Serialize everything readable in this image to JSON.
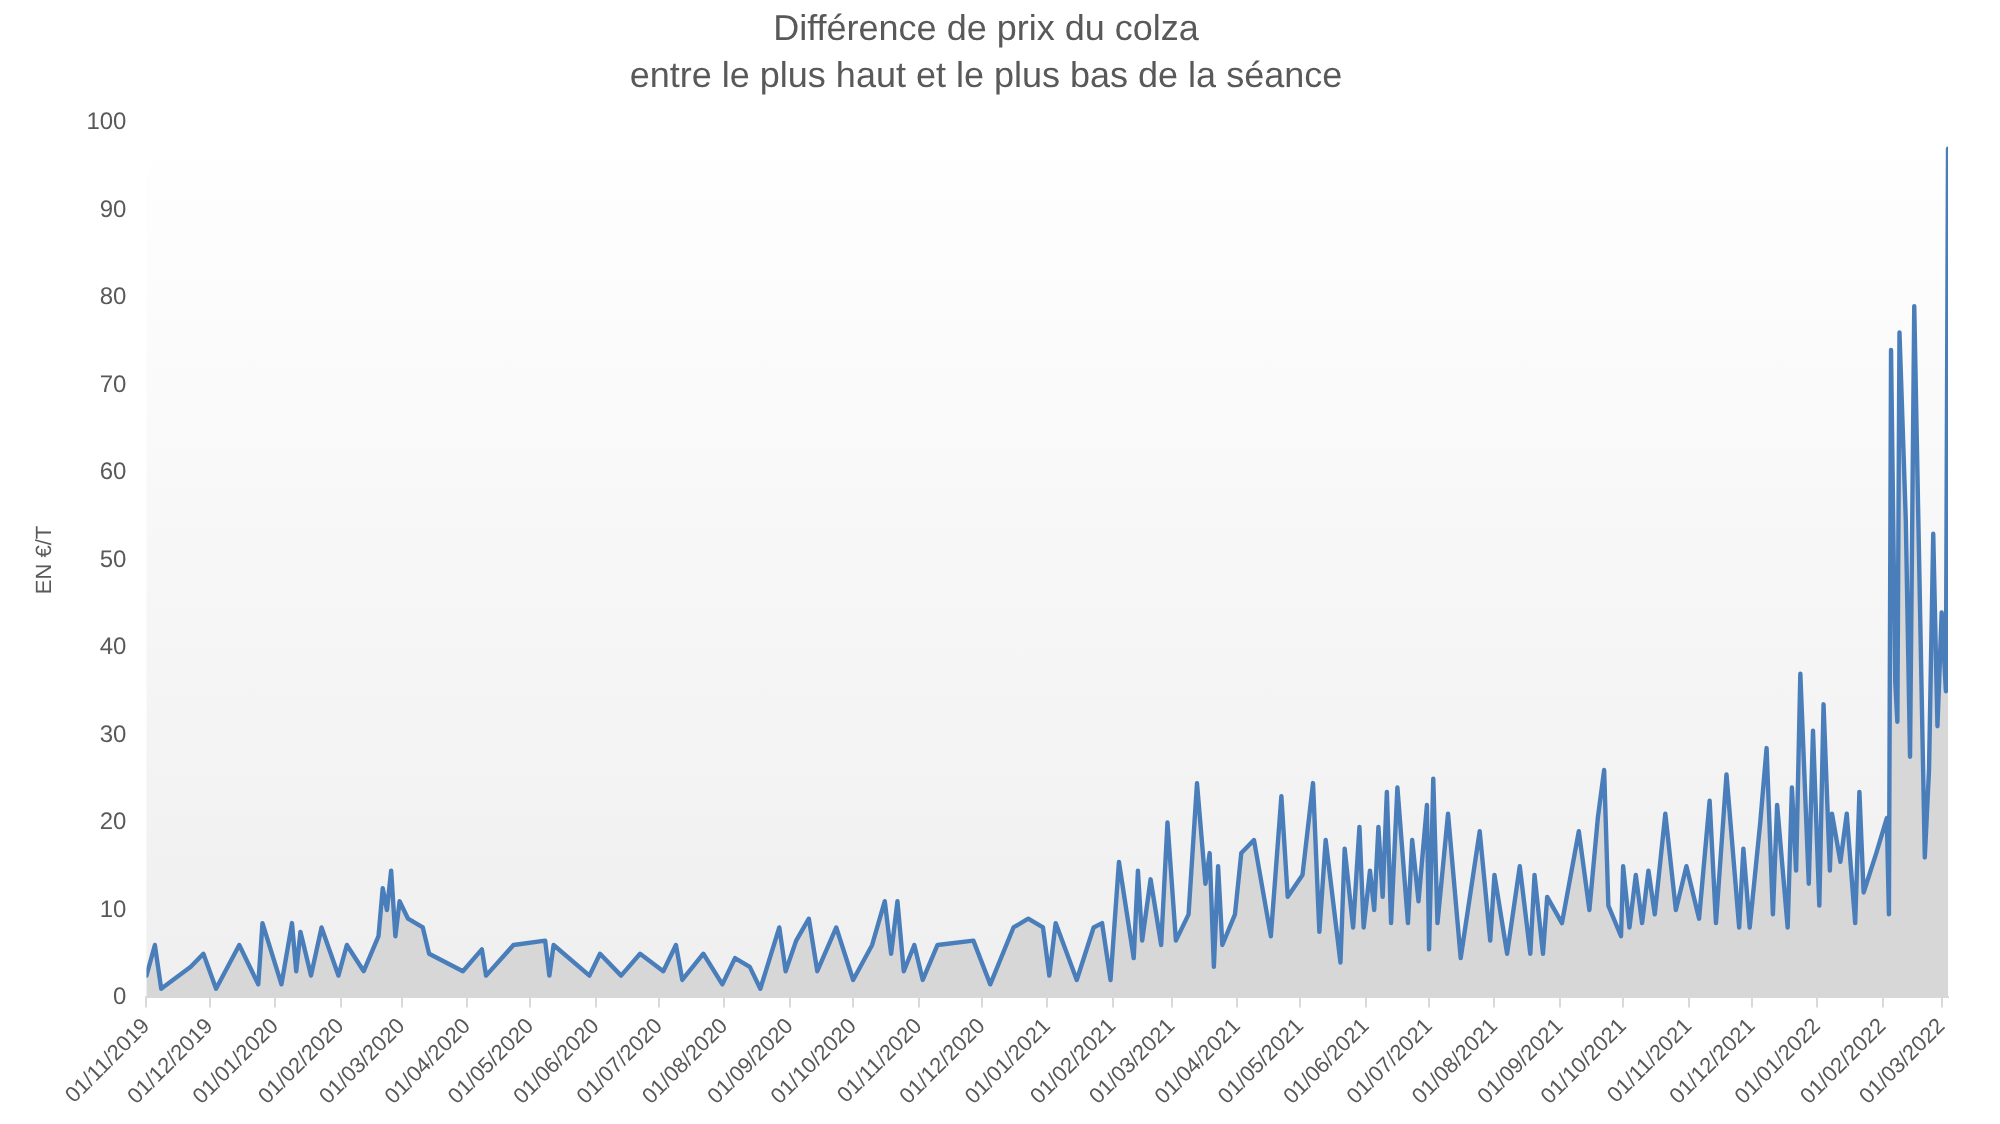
{
  "chart_data": {
    "type": "area",
    "title": "Différence de prix du colza",
    "subtitle": "entre le plus haut et le plus bas de la séance",
    "ylabel": "EN €/T",
    "x": [
      "2019-11-01",
      "2019-11-05",
      "2019-11-08",
      "2019-11-22",
      "2019-11-28",
      "2019-12-04",
      "2019-12-15",
      "2019-12-24",
      "2019-12-26",
      "2020-01-04",
      "2020-01-09",
      "2020-01-11",
      "2020-01-13",
      "2020-01-18",
      "2020-01-23",
      "2020-01-31",
      "2020-02-04",
      "2020-02-12",
      "2020-02-19",
      "2020-02-21",
      "2020-02-23",
      "2020-02-25",
      "2020-02-27",
      "2020-02-29",
      "2020-03-04",
      "2020-03-11",
      "2020-03-14",
      "2020-03-30",
      "2020-04-08",
      "2020-04-10",
      "2020-04-23",
      "2020-05-08",
      "2020-05-10",
      "2020-05-12",
      "2020-05-29",
      "2020-06-03",
      "2020-06-13",
      "2020-06-22",
      "2020-07-03",
      "2020-07-09",
      "2020-07-12",
      "2020-07-22",
      "2020-07-31",
      "2020-08-06",
      "2020-08-13",
      "2020-08-18",
      "2020-08-27",
      "2020-08-30",
      "2020-09-04",
      "2020-09-10",
      "2020-09-14",
      "2020-09-23",
      "2020-10-01",
      "2020-10-10",
      "2020-10-16",
      "2020-10-19",
      "2020-10-22",
      "2020-10-25",
      "2020-10-30",
      "2020-11-03",
      "2020-11-10",
      "2020-11-27",
      "2020-12-05",
      "2020-12-16",
      "2020-12-23",
      "2020-12-30",
      "2021-01-02",
      "2021-01-05",
      "2021-01-15",
      "2021-01-23",
      "2021-01-27",
      "2021-01-31",
      "2021-02-04",
      "2021-02-11",
      "2021-02-13",
      "2021-02-15",
      "2021-02-19",
      "2021-02-24",
      "2021-02-27",
      "2021-03-03",
      "2021-03-09",
      "2021-03-13",
      "2021-03-17",
      "2021-03-19",
      "2021-03-21",
      "2021-03-23",
      "2021-03-25",
      "2021-03-31",
      "2021-04-03",
      "2021-04-09",
      "2021-04-17",
      "2021-04-22",
      "2021-04-25",
      "2021-05-02",
      "2021-05-07",
      "2021-05-10",
      "2021-05-13",
      "2021-05-20",
      "2021-05-22",
      "2021-05-26",
      "2021-05-29",
      "2021-05-31",
      "2021-06-03",
      "2021-06-05",
      "2021-06-07",
      "2021-06-09",
      "2021-06-11",
      "2021-06-13",
      "2021-06-16",
      "2021-06-21",
      "2021-06-23",
      "2021-06-26",
      "2021-06-30",
      "2021-07-01",
      "2021-07-03",
      "2021-07-05",
      "2021-07-10",
      "2021-07-16",
      "2021-07-25",
      "2021-07-30",
      "2021-08-01",
      "2021-08-07",
      "2021-08-13",
      "2021-08-18",
      "2021-08-20",
      "2021-08-24",
      "2021-08-26",
      "2021-09-02",
      "2021-09-10",
      "2021-09-15",
      "2021-09-19",
      "2021-09-22",
      "2021-09-24",
      "2021-09-30",
      "2021-10-01",
      "2021-10-04",
      "2021-10-07",
      "2021-10-10",
      "2021-10-13",
      "2021-10-16",
      "2021-10-21",
      "2021-10-26",
      "2021-10-31",
      "2021-11-06",
      "2021-11-11",
      "2021-11-14",
      "2021-11-19",
      "2021-11-25",
      "2021-11-27",
      "2021-11-30",
      "2021-12-05",
      "2021-12-08",
      "2021-12-11",
      "2021-12-13",
      "2021-12-18",
      "2021-12-20",
      "2021-12-22",
      "2021-12-24",
      "2021-12-28",
      "2021-12-30",
      "2022-01-02",
      "2022-01-04",
      "2022-01-07",
      "2022-01-08",
      "2022-01-12",
      "2022-01-15",
      "2022-01-19",
      "2022-01-21",
      "2022-01-23",
      "2022-01-29",
      "2022-02-03",
      "2022-02-04",
      "2022-02-05",
      "2022-02-07",
      "2022-02-08",
      "2022-02-09",
      "2022-02-12",
      "2022-02-14",
      "2022-02-16",
      "2022-02-21",
      "2022-02-23",
      "2022-02-25",
      "2022-02-27",
      "2022-03-01",
      "2022-03-03",
      "2022-03-04"
    ],
    "series": [
      {
        "color": "#4a7ebb",
        "values": [
          2.5,
          6,
          1,
          3.5,
          5,
          1,
          6,
          1.5,
          8.5,
          1.5,
          8.5,
          3,
          7.5,
          2.5,
          8,
          2.5,
          6,
          3,
          7,
          12.5,
          10,
          14.5,
          7,
          11,
          9,
          8,
          5,
          3,
          5.5,
          2.5,
          6,
          6.5,
          2.5,
          6,
          2.5,
          5,
          2.5,
          5,
          3,
          6,
          2,
          5,
          1.5,
          4.5,
          3.5,
          1,
          8,
          3,
          6.5,
          9,
          3,
          8,
          2,
          6,
          11,
          5,
          11,
          3,
          6,
          2,
          6,
          6.5,
          1.5,
          8,
          9,
          8,
          2.5,
          8.5,
          2,
          8,
          8.5,
          2,
          15.5,
          4.5,
          14.5,
          6.5,
          13.5,
          6,
          20,
          6.5,
          9.5,
          24.5,
          13,
          16.5,
          3.5,
          15,
          6,
          9.5,
          16.5,
          18,
          7,
          23,
          11.5,
          14,
          24.5,
          7.5,
          18,
          4,
          17,
          8,
          19.5,
          8,
          14.5,
          10,
          19.5,
          11.5,
          23.5,
          8.5,
          24,
          8.5,
          18,
          11,
          22,
          5.5,
          25,
          8.5,
          21,
          4.5,
          19,
          6.5,
          14,
          5,
          15,
          5,
          14,
          5,
          11.5,
          8.5,
          19,
          10,
          20.5,
          26,
          10.5,
          7,
          15,
          8,
          14,
          8.5,
          14.5,
          9.5,
          21,
          10,
          15,
          9,
          22.5,
          8.5,
          25.5,
          8,
          17,
          8,
          20,
          28.5,
          9.5,
          22,
          8,
          24,
          14.5,
          37,
          13,
          30.5,
          10.5,
          33.5,
          14.5,
          21,
          15.5,
          21,
          8.5,
          23.5,
          12,
          16.5,
          20.5,
          9.5,
          74,
          36,
          31.5,
          76,
          54.5,
          27.5,
          79,
          16,
          26,
          53,
          31,
          44,
          35,
          97
        ]
      }
    ],
    "xlim": [
      "2019-11-01",
      "2022-03-04"
    ],
    "xticks": [
      {
        "value": "2019-11-01",
        "label": "01/11/2019"
      },
      {
        "value": "2019-12-01",
        "label": "01/12/2019"
      },
      {
        "value": "2020-01-01",
        "label": "01/01/2020"
      },
      {
        "value": "2020-02-01",
        "label": "01/02/2020"
      },
      {
        "value": "2020-03-01",
        "label": "01/03/2020"
      },
      {
        "value": "2020-04-01",
        "label": "01/04/2020"
      },
      {
        "value": "2020-05-01",
        "label": "01/05/2020"
      },
      {
        "value": "2020-06-01",
        "label": "01/06/2020"
      },
      {
        "value": "2020-07-01",
        "label": "01/07/2020"
      },
      {
        "value": "2020-08-01",
        "label": "01/08/2020"
      },
      {
        "value": "2020-09-01",
        "label": "01/09/2020"
      },
      {
        "value": "2020-10-01",
        "label": "01/10/2020"
      },
      {
        "value": "2020-11-01",
        "label": "01/11/2020"
      },
      {
        "value": "2020-12-01",
        "label": "01/12/2020"
      },
      {
        "value": "2021-01-01",
        "label": "01/01/2021"
      },
      {
        "value": "2021-02-01",
        "label": "01/02/2021"
      },
      {
        "value": "2021-03-01",
        "label": "01/03/2021"
      },
      {
        "value": "2021-04-01",
        "label": "01/04/2021"
      },
      {
        "value": "2021-05-01",
        "label": "01/05/2021"
      },
      {
        "value": "2021-06-01",
        "label": "01/06/2021"
      },
      {
        "value": "2021-07-01",
        "label": "01/07/2021"
      },
      {
        "value": "2021-08-01",
        "label": "01/08/2021"
      },
      {
        "value": "2021-09-01",
        "label": "01/09/2021"
      },
      {
        "value": "2021-10-01",
        "label": "01/10/2021"
      },
      {
        "value": "2021-11-01",
        "label": "01/11/2021"
      },
      {
        "value": "2021-12-01",
        "label": "01/12/2021"
      },
      {
        "value": "2022-01-01",
        "label": "01/01/2022"
      },
      {
        "value": "2022-02-01",
        "label": "01/02/2022"
      },
      {
        "value": "2022-03-01",
        "label": "01/03/2022"
      }
    ],
    "ylim": [
      0,
      100
    ],
    "yticks": [
      0,
      10,
      20,
      30,
      40,
      50,
      60,
      70,
      80,
      90,
      100
    ],
    "grid": false,
    "legend": false,
    "marker": "none",
    "line_style": "solid"
  }
}
